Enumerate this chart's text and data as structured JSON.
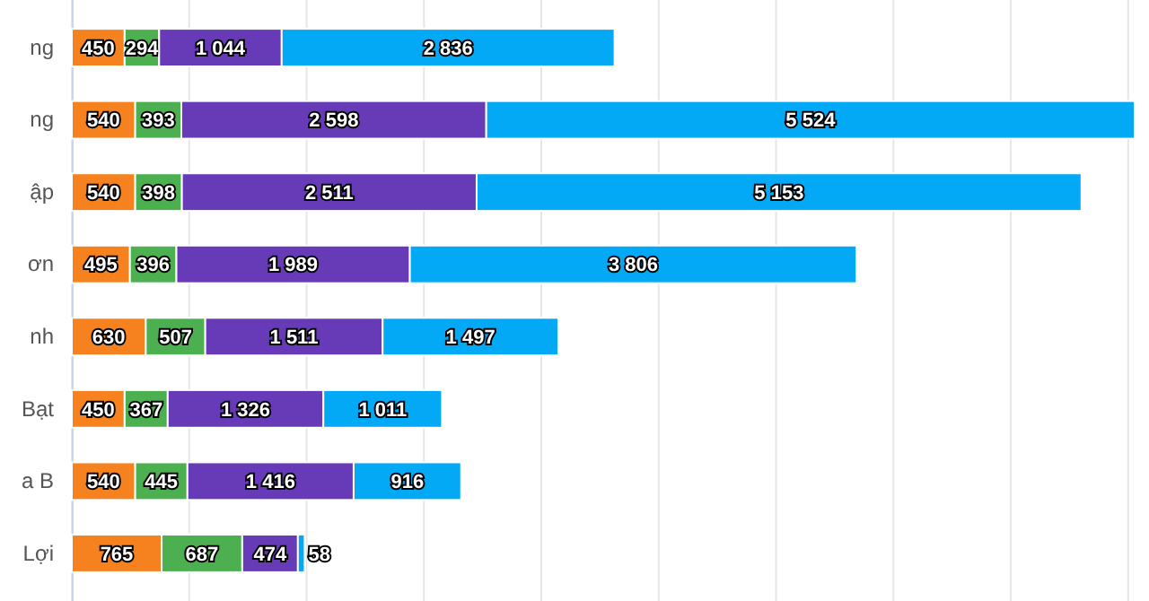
{
  "chart_data": {
    "type": "bar",
    "orientation": "horizontal",
    "stacked": true,
    "data_labels": true,
    "grid": "x",
    "tick_labels": "y",
    "categories": [
      "ng",
      "ng",
      "ập",
      "ơn",
      "nh",
      "Bạt",
      "a B",
      "Lợi"
    ],
    "series": [
      {
        "color": "#f5821f",
        "values": [
          450,
          540,
          540,
          495,
          630,
          450,
          540,
          765
        ]
      },
      {
        "color": "#4caf50",
        "values": [
          294,
          393,
          398,
          396,
          507,
          367,
          445,
          687
        ]
      },
      {
        "color": "#673ab7",
        "values": [
          1044,
          2598,
          2511,
          1989,
          1511,
          1326,
          1416,
          474
        ]
      },
      {
        "color": "#03a9f4",
        "values": [
          2836,
          5524,
          5153,
          3806,
          1497,
          1011,
          916,
          58
        ]
      }
    ],
    "xticks": [
      {
        "value": 0,
        "label": null
      },
      {
        "value": 1000,
        "label": null
      },
      {
        "value": 2000,
        "label": null
      },
      {
        "value": 3000,
        "label": null
      },
      {
        "value": 4000,
        "label": null
      },
      {
        "value": 5000,
        "label": null
      },
      {
        "value": 6000,
        "label": null
      },
      {
        "value": 7000,
        "label": null
      },
      {
        "value": 8000,
        "label": null
      },
      {
        "value": 9000,
        "label": null
      }
    ]
  }
}
